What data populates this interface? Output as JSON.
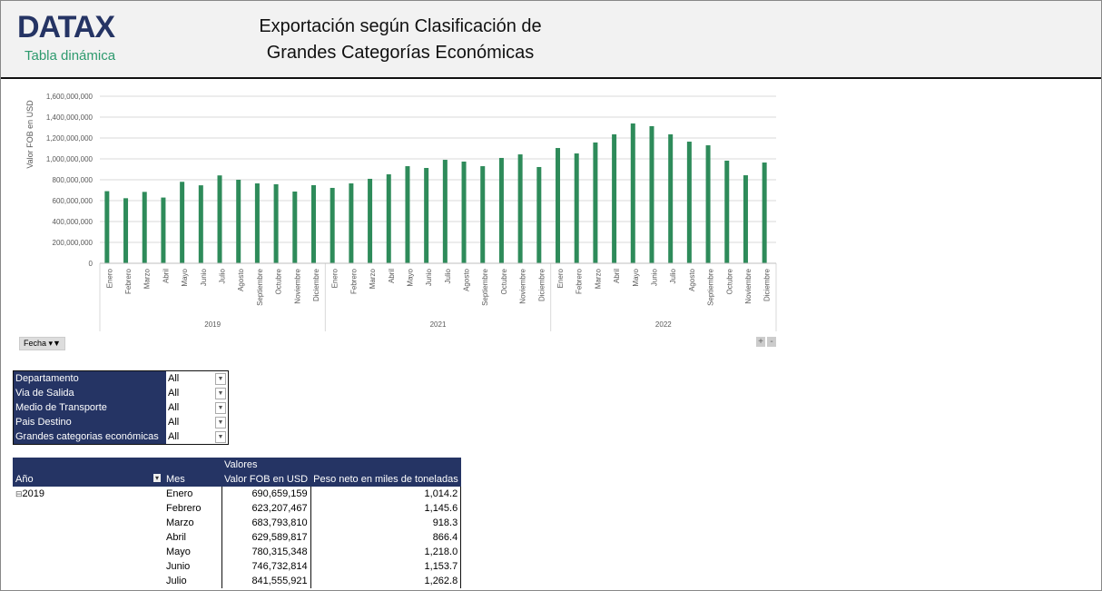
{
  "header": {
    "logo": "DATAX",
    "subtitle": "Tabla dinámica",
    "title_line1": "Exportación según Clasificación de",
    "title_line2": "Grandes Categorías Económicas"
  },
  "chart_data": {
    "type": "bar",
    "ylabel": "Valor FOB en USD",
    "ylim": [
      0,
      1600000000
    ],
    "yticks": [
      "0",
      "200,000,000",
      "400,000,000",
      "600,000,000",
      "800,000,000",
      "1,000,000,000",
      "1,200,000,000",
      "1,400,000,000",
      "1,600,000,000"
    ],
    "grid": true,
    "bar_color": "#2e8b5a",
    "years": [
      "2019",
      "2021",
      "2022"
    ],
    "months": [
      "Enero",
      "Febrero",
      "Marzo",
      "Abril",
      "Mayo",
      "Junio",
      "Julio",
      "Agosto",
      "Septiembre",
      "Octubre",
      "Noviembre",
      "Diciembre"
    ],
    "series": [
      {
        "name": "Valor FOB en USD",
        "values": [
          690659159,
          623207467,
          683793810,
          629589817,
          780315348,
          746732814,
          841555921,
          800000000,
          765000000,
          757000000,
          687000000,
          748000000,
          722000000,
          765000000,
          809000000,
          852000000,
          930000000,
          913000000,
          991000000,
          974000000,
          930000000,
          1009000000,
          1043000000,
          922000000,
          1104000000,
          1052000000,
          1157000000,
          1235000000,
          1339000000,
          1313000000,
          1235000000,
          1165000000,
          1130000000,
          983000000,
          843000000,
          965000000
        ]
      }
    ]
  },
  "chart_controls": {
    "field_button": "Fecha",
    "expand": "+",
    "collapse": "-"
  },
  "filters": [
    {
      "label": "Departamento",
      "value": "All"
    },
    {
      "label": "Via de Salida",
      "value": "All"
    },
    {
      "label": "Medio de Transporte",
      "value": "All"
    },
    {
      "label": "Pais Destino",
      "value": "All"
    },
    {
      "label": "Grandes categorias económicas",
      "value": "All"
    }
  ],
  "pivot": {
    "values_header": "Valores",
    "col_year": "Año",
    "col_month": "Mes",
    "col_fob": "Valor FOB en USD",
    "col_peso": "Peso neto en miles de toneladas",
    "year": "2019",
    "rows": [
      {
        "mes": "Enero",
        "fob": "690,659,159",
        "peso": "1,014.2"
      },
      {
        "mes": "Febrero",
        "fob": "623,207,467",
        "peso": "1,145.6"
      },
      {
        "mes": "Marzo",
        "fob": "683,793,810",
        "peso": "918.3"
      },
      {
        "mes": "Abril",
        "fob": "629,589,817",
        "peso": "866.4"
      },
      {
        "mes": "Mayo",
        "fob": "780,315,348",
        "peso": "1,218.0"
      },
      {
        "mes": "Junio",
        "fob": "746,732,814",
        "peso": "1,153.7"
      },
      {
        "mes": "Julio",
        "fob": "841,555,921",
        "peso": "1,262.8"
      }
    ]
  }
}
